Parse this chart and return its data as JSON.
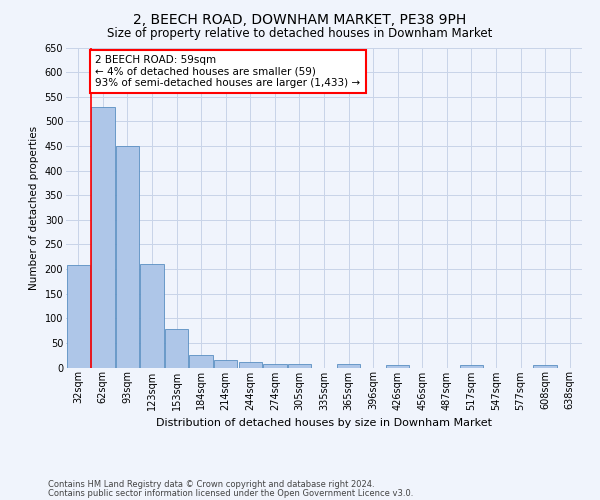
{
  "title": "2, BEECH ROAD, DOWNHAM MARKET, PE38 9PH",
  "subtitle": "Size of property relative to detached houses in Downham Market",
  "xlabel": "Distribution of detached houses by size in Downham Market",
  "ylabel": "Number of detached properties",
  "footer_line1": "Contains HM Land Registry data © Crown copyright and database right 2024.",
  "footer_line2": "Contains public sector information licensed under the Open Government Licence v3.0.",
  "bar_labels": [
    "32sqm",
    "62sqm",
    "93sqm",
    "123sqm",
    "153sqm",
    "184sqm",
    "214sqm",
    "244sqm",
    "274sqm",
    "305sqm",
    "335sqm",
    "365sqm",
    "396sqm",
    "426sqm",
    "456sqm",
    "487sqm",
    "517sqm",
    "547sqm",
    "577sqm",
    "608sqm",
    "638sqm"
  ],
  "bar_values": [
    208,
    530,
    450,
    211,
    78,
    26,
    15,
    12,
    8,
    8,
    0,
    8,
    0,
    6,
    0,
    0,
    6,
    0,
    0,
    6,
    0
  ],
  "bar_color": "#aec6e8",
  "bar_edge_color": "#5a8fc2",
  "background_color": "#f0f4fc",
  "grid_color": "#c8d4e8",
  "annotation_line1": "2 BEECH ROAD: 59sqm",
  "annotation_line2": "← 4% of detached houses are smaller (59)",
  "annotation_line3": "93% of semi-detached houses are larger (1,433) →",
  "annotation_box_color": "white",
  "annotation_box_edge": "red",
  "vline_color": "red",
  "vline_x_index": 1,
  "ylim": [
    0,
    650
  ],
  "yticks": [
    0,
    50,
    100,
    150,
    200,
    250,
    300,
    350,
    400,
    450,
    500,
    550,
    600,
    650
  ],
  "title_fontsize": 10,
  "subtitle_fontsize": 8.5,
  "ylabel_fontsize": 7.5,
  "xlabel_fontsize": 8,
  "tick_fontsize": 7,
  "footer_fontsize": 6,
  "annotation_fontsize": 7.5
}
